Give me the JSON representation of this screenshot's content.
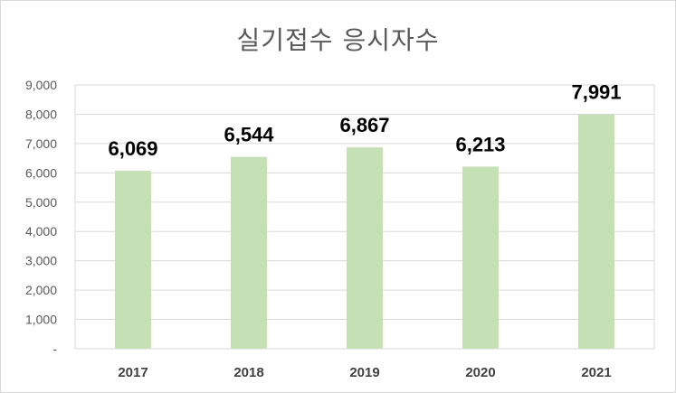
{
  "chart_data": {
    "type": "bar",
    "title": "실기접수 응시자수",
    "xlabel": "",
    "ylabel": "",
    "categories": [
      "2017",
      "2018",
      "2019",
      "2020",
      "2021"
    ],
    "values": [
      6069,
      6544,
      6867,
      6213,
      7991
    ],
    "value_labels": [
      "6,069",
      "6,544",
      "6,867",
      "6,213",
      "7,991"
    ],
    "ylim": [
      0,
      9000
    ],
    "yticks": [
      0,
      1000,
      2000,
      3000,
      4000,
      5000,
      6000,
      7000,
      8000,
      9000
    ],
    "ytick_labels": [
      "-",
      "1,000",
      "2,000",
      "3,000",
      "4,000",
      "5,000",
      "6,000",
      "7,000",
      "8,000",
      "9,000"
    ],
    "grid": true,
    "legend": "none",
    "colors": {
      "bar": "#c5e0b4",
      "grid": "#d9d9d9",
      "title": "#595959",
      "tick": "#595959"
    }
  }
}
